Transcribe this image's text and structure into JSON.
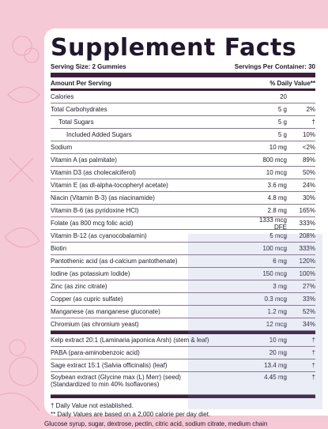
{
  "title": "Supplement Facts",
  "serving_size": "Serving Size: 2 Gummies",
  "servings_per_container": "Servings Per Container: 30",
  "header": {
    "amount": "Amount Per Serving",
    "dv": "% Daily Value**"
  },
  "rows": [
    {
      "label": "Calories",
      "amount": "20",
      "dv": ""
    },
    {
      "label": "Total Carbohydrates",
      "amount": "5 g",
      "dv": "2%"
    },
    {
      "label": "Total Sugars",
      "amount": "5 g",
      "dv": "†"
    },
    {
      "label": "Included Added Sugars",
      "amount": "5 g",
      "dv": "10%"
    },
    {
      "label": "Sodium",
      "amount": "10 mg",
      "dv": "<2%"
    },
    {
      "label": "Vitamin A (as palmitate)",
      "amount": "800 mcg",
      "dv": "89%"
    },
    {
      "label": "Vitamin D3 (as cholecalciferol)",
      "amount": "10 mcg",
      "dv": "50%"
    },
    {
      "label": "Vitamin E (as dl-alpha-tocopheryl acetate)",
      "amount": "3.6 mg",
      "dv": "24%"
    },
    {
      "label": "Niacin (Vitamin B-3) (as niacinamide)",
      "amount": "4.8 mg",
      "dv": "30%"
    },
    {
      "label": "Vitamin B-6 (as pyridoxine HCl)",
      "amount": "2.8 mg",
      "dv": "165%"
    },
    {
      "label": "Folate (as 800 mcg folic acid)",
      "amount": "1333 mcg DFE",
      "dv": "333%"
    },
    {
      "label": "Vitamin B-12 (as cyanocobalamin)",
      "amount": "5 mcg",
      "dv": "208%"
    },
    {
      "label": "Biotin",
      "amount": "100 mcg",
      "dv": "333%"
    },
    {
      "label": "Pantothenic acid (as d-calcium pantothenate)",
      "amount": "6 mg",
      "dv": "120%"
    },
    {
      "label": "Iodine (as potassium Iodide)",
      "amount": "150 mcg",
      "dv": "100%"
    },
    {
      "label": "Zinc (as zinc citrate)",
      "amount": "3 mg",
      "dv": "27%"
    },
    {
      "label": "Copper (as cupric sulfate)",
      "amount": "0.3 mcg",
      "dv": "33%"
    },
    {
      "label": "Manganese (as manganese gluconate)",
      "amount": "1.2 mg",
      "dv": "52%"
    },
    {
      "label": "Chromium (as chromium yeast)",
      "amount": "12 mcg",
      "dv": "34%"
    }
  ],
  "extras": [
    {
      "label": "Kelp extract 20:1 (Laminaria japonica Arsh) (stem & leaf)",
      "amount": "10 mg",
      "dv": "†"
    },
    {
      "label": "PABA (para-aminobenzoic acid)",
      "amount": "20 mg",
      "dv": "†"
    },
    {
      "label": "Sage extract 15:1 (Salvia officinalis) (leaf)",
      "amount": "13.4 mg",
      "dv": "†"
    },
    {
      "label": "Soybean extract (Glycine max (L) Merr) (seed)",
      "label2": "(Standardized to min 40% Isoflavones)",
      "amount": "4.45 mg",
      "dv": "†"
    }
  ],
  "footnotes": [
    "† Daily Value not established.",
    "** Daily Values are based on a 2,000 calorie per day diet."
  ],
  "ingredients": "Glucose syrup, sugar, dextrose, pectin, citric acid, sodium citrate, medium chain"
}
